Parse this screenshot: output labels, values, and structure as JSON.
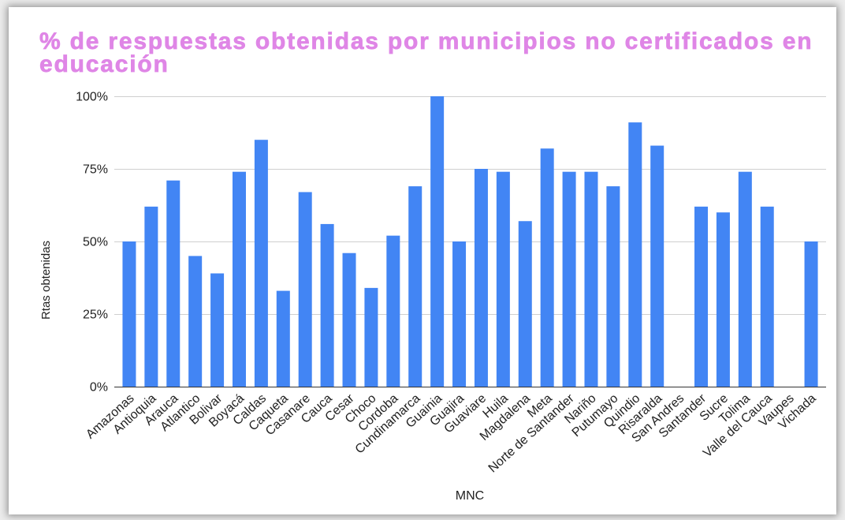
{
  "chart_data": {
    "type": "bar",
    "title": "% de respuestas obtenidas por municipios no certificados en educación",
    "xlabel": "MNC",
    "ylabel": "Rtas obtenidas",
    "categories": [
      "Amazonas",
      "Antioquia",
      "Arauca",
      "Atlantico",
      "Bolivar",
      "Boyacá",
      "Caldas",
      "Caqueta",
      "Casanare",
      "Cauca",
      "Cesar",
      "Choco",
      "Cordoba",
      "Cundinamarca",
      "Guainia",
      "Guajira",
      "Guaviare",
      "Huila",
      "Magdalena",
      "Meta",
      "Norte de Santander",
      "Nariño",
      "Putumayo",
      "Quindio",
      "Risaralda",
      "San Andres",
      "Santander",
      "Sucre",
      "Tolima",
      "Valle del Cauca",
      "Vaupes",
      "Vichada"
    ],
    "values": [
      50,
      62,
      71,
      45,
      39,
      74,
      85,
      33,
      67,
      56,
      46,
      34,
      52,
      69,
      100,
      50,
      75,
      74,
      57,
      82,
      74,
      74,
      69,
      91,
      83,
      0,
      62,
      60,
      74,
      62,
      0,
      50
    ],
    "ylim": [
      0,
      100
    ],
    "yticks": [
      {
        "value": 0,
        "label": "0%"
      },
      {
        "value": 25,
        "label": "25%"
      },
      {
        "value": 50,
        "label": "50%"
      },
      {
        "value": 75,
        "label": "75%"
      },
      {
        "value": 100,
        "label": "100%"
      }
    ],
    "grid": true,
    "legend": "none",
    "colors": {
      "bars": "#4285f4",
      "title": "#df86e6",
      "gridlines": "#cfcfcf",
      "axis": "#333333"
    }
  }
}
